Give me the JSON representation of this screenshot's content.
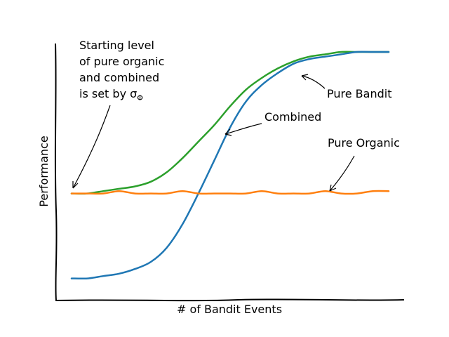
{
  "chart_data": {
    "type": "line",
    "style": "xkcd",
    "xlabel": "# of Bandit Events",
    "ylabel": "Performance",
    "x_ticks": "none",
    "y_ticks": "none",
    "grid": false,
    "xlim": [
      0,
      1
    ],
    "ylim": [
      0,
      1
    ],
    "series": [
      {
        "name": "Combined",
        "color": "#2ca02c",
        "x": [
          0.0,
          0.05,
          0.1,
          0.15,
          0.2,
          0.25,
          0.3,
          0.35,
          0.4,
          0.45,
          0.5,
          0.55,
          0.6,
          0.65,
          0.7,
          0.75,
          0.8,
          0.85,
          0.9,
          0.95,
          1.0
        ],
        "y": [
          0.4,
          0.4,
          0.41,
          0.42,
          0.43,
          0.45,
          0.49,
          0.55,
          0.62,
          0.69,
          0.77,
          0.84,
          0.89,
          0.93,
          0.96,
          0.98,
          0.99,
          1.0,
          1.0,
          1.0,
          1.0
        ]
      },
      {
        "name": "Pure Bandit",
        "color": "#1f77b4",
        "x": [
          0.0,
          0.05,
          0.1,
          0.15,
          0.2,
          0.25,
          0.3,
          0.35,
          0.4,
          0.45,
          0.5,
          0.55,
          0.6,
          0.65,
          0.7,
          0.75,
          0.8,
          0.85,
          0.9,
          0.95,
          1.0
        ],
        "y": [
          0.04,
          0.04,
          0.05,
          0.06,
          0.08,
          0.11,
          0.17,
          0.27,
          0.4,
          0.54,
          0.68,
          0.79,
          0.86,
          0.91,
          0.95,
          0.97,
          0.98,
          0.99,
          1.0,
          1.0,
          1.0
        ]
      },
      {
        "name": "Pure Organic",
        "color": "#ff7f0e",
        "x": [
          0.0,
          0.05,
          0.1,
          0.15,
          0.2,
          0.25,
          0.3,
          0.35,
          0.4,
          0.45,
          0.5,
          0.55,
          0.6,
          0.65,
          0.7,
          0.75,
          0.8,
          0.85,
          0.9,
          0.95,
          1.0
        ],
        "y": [
          0.4,
          0.4,
          0.4,
          0.41,
          0.4,
          0.4,
          0.4,
          0.41,
          0.4,
          0.4,
          0.4,
          0.4,
          0.41,
          0.4,
          0.4,
          0.4,
          0.41,
          0.4,
          0.4,
          0.41,
          0.41
        ]
      }
    ],
    "annotations": [
      {
        "name": "start-note",
        "lines": [
          "Starting level",
          "of pure organic",
          "and combined",
          "is set by σ"
        ],
        "subscript": "Φ",
        "target": [
          0.0,
          0.4
        ]
      },
      {
        "name": "pure-bandit-label",
        "lines": [
          "Pure Bandit"
        ],
        "target": [
          0.72,
          0.95
        ]
      },
      {
        "name": "combined-label",
        "lines": [
          "Combined"
        ],
        "target": [
          0.53,
          0.81
        ]
      },
      {
        "name": "pure-organic-label",
        "lines": [
          "Pure Organic"
        ],
        "target": [
          0.83,
          0.41
        ]
      }
    ]
  }
}
